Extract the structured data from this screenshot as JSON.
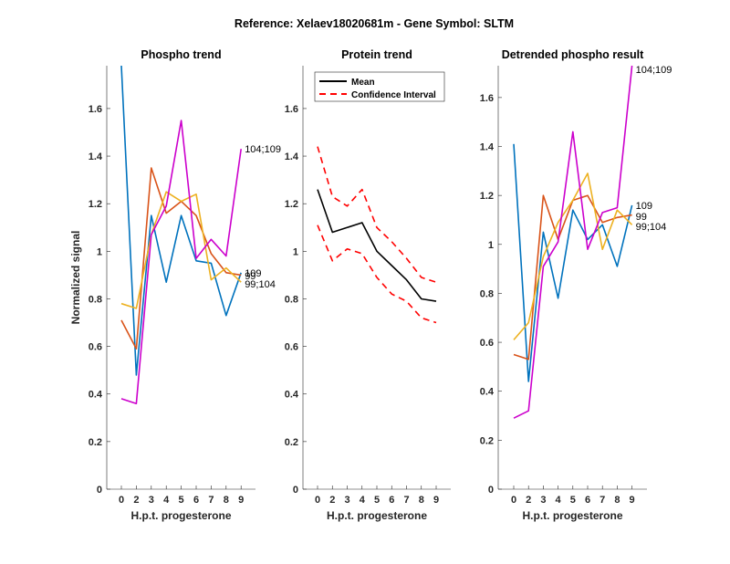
{
  "figure_title": "Reference:  Xelaev18020681m - Gene Symbol:  SLTM",
  "chart_data": [
    {
      "type": "line",
      "title": "Phospho trend",
      "xlabel": "H.p.t. progesterone",
      "ylabel": "Normalized signal",
      "x": [
        "0",
        "2",
        "3",
        "4",
        "5",
        "6",
        "7",
        "8",
        "9"
      ],
      "ylim": [
        0,
        1.78
      ],
      "yticks": [
        0,
        0.2,
        0.4,
        0.6,
        0.8,
        1,
        1.2,
        1.4,
        1.6
      ],
      "ytick_labels": [
        "0",
        "0.2",
        "0.4",
        "0.6",
        "0.8",
        "1",
        "1.2",
        "1.4",
        "1.6"
      ],
      "grid": false,
      "series": [
        {
          "name": "109",
          "color": "#0072BD",
          "values": [
            1.78,
            0.48,
            1.15,
            0.87,
            1.15,
            0.96,
            0.95,
            0.73,
            0.91
          ]
        },
        {
          "name": "99",
          "color": "#D95319",
          "values": [
            0.71,
            0.59,
            1.35,
            1.16,
            1.21,
            1.15,
            0.99,
            0.91,
            0.9
          ]
        },
        {
          "name": "99;104",
          "color": "#EDB120",
          "values": [
            0.78,
            0.76,
            1.07,
            1.25,
            1.21,
            1.24,
            0.88,
            0.93,
            0.87
          ]
        },
        {
          "name": "104;109",
          "color": "#CC00CC",
          "values": [
            0.38,
            0.36,
            1.07,
            1.19,
            1.55,
            0.97,
            1.05,
            0.98,
            1.43
          ]
        }
      ],
      "end_labels": [
        {
          "text": "104;109",
          "y": 1.43
        },
        {
          "text": "109",
          "y": 0.915
        },
        {
          "text": "99",
          "y": 0.9
        },
        {
          "text": "99;104",
          "y": 0.87
        }
      ]
    },
    {
      "type": "line",
      "title": "Protein trend",
      "xlabel": "H.p.t. progesterone",
      "ylabel": "",
      "x": [
        "0",
        "2",
        "3",
        "4",
        "5",
        "6",
        "7",
        "8",
        "9"
      ],
      "ylim": [
        0,
        1.78
      ],
      "yticks": [
        0,
        0.2,
        0.4,
        0.6,
        0.8,
        1,
        1.2,
        1.4,
        1.6
      ],
      "ytick_labels": [
        "0",
        "0.2",
        "0.4",
        "0.6",
        "0.8",
        "1",
        "1.2",
        "1.4",
        "1.6"
      ],
      "grid": false,
      "legend": {
        "position": "top-left",
        "entries": [
          "Mean",
          "Confidence Interval"
        ]
      },
      "series": [
        {
          "name": "Mean",
          "color": "#000000",
          "style": "solid",
          "values": [
            1.26,
            1.08,
            1.1,
            1.12,
            1.0,
            0.94,
            0.88,
            0.8,
            0.79
          ]
        },
        {
          "name": "Confidence Interval (upper)",
          "color": "#FF0000",
          "style": "dashed",
          "values": [
            1.44,
            1.23,
            1.19,
            1.26,
            1.1,
            1.04,
            0.97,
            0.89,
            0.87
          ]
        },
        {
          "name": "Confidence Interval (lower)",
          "color": "#FF0000",
          "style": "dashed",
          "values": [
            1.11,
            0.96,
            1.01,
            0.99,
            0.89,
            0.82,
            0.79,
            0.72,
            0.7
          ]
        }
      ]
    },
    {
      "type": "line",
      "title": "Detrended phospho result",
      "xlabel": "H.p.t. progesterone",
      "ylabel": "",
      "x": [
        "0",
        "2",
        "3",
        "4",
        "5",
        "6",
        "7",
        "8",
        "9"
      ],
      "ylim": [
        0,
        1.73
      ],
      "yticks": [
        0,
        0.2,
        0.4,
        0.6,
        0.8,
        1,
        1.2,
        1.4,
        1.6
      ],
      "ytick_labels": [
        "0",
        "0.2",
        "0.4",
        "0.6",
        "0.8",
        "1",
        "1.2",
        "1.4",
        "1.6"
      ],
      "grid": false,
      "series": [
        {
          "name": "109",
          "color": "#0072BD",
          "values": [
            1.41,
            0.44,
            1.05,
            0.78,
            1.14,
            1.02,
            1.08,
            0.91,
            1.16
          ]
        },
        {
          "name": "99",
          "color": "#D95319",
          "values": [
            0.55,
            0.53,
            1.2,
            1.02,
            1.18,
            1.2,
            1.09,
            1.11,
            1.12
          ]
        },
        {
          "name": "99;104",
          "color": "#EDB120",
          "values": [
            0.61,
            0.68,
            0.95,
            1.09,
            1.18,
            1.29,
            0.98,
            1.14,
            1.08
          ]
        },
        {
          "name": "104;109",
          "color": "#CC00CC",
          "values": [
            0.29,
            0.32,
            0.91,
            1.01,
            1.46,
            0.98,
            1.13,
            1.15,
            1.73
          ]
        }
      ],
      "end_labels": [
        {
          "text": "104;109",
          "y": 1.73
        },
        {
          "text": "109",
          "y": 1.16
        },
        {
          "text": "99",
          "y": 1.12
        },
        {
          "text": "99;104",
          "y": 1.08
        }
      ]
    }
  ]
}
